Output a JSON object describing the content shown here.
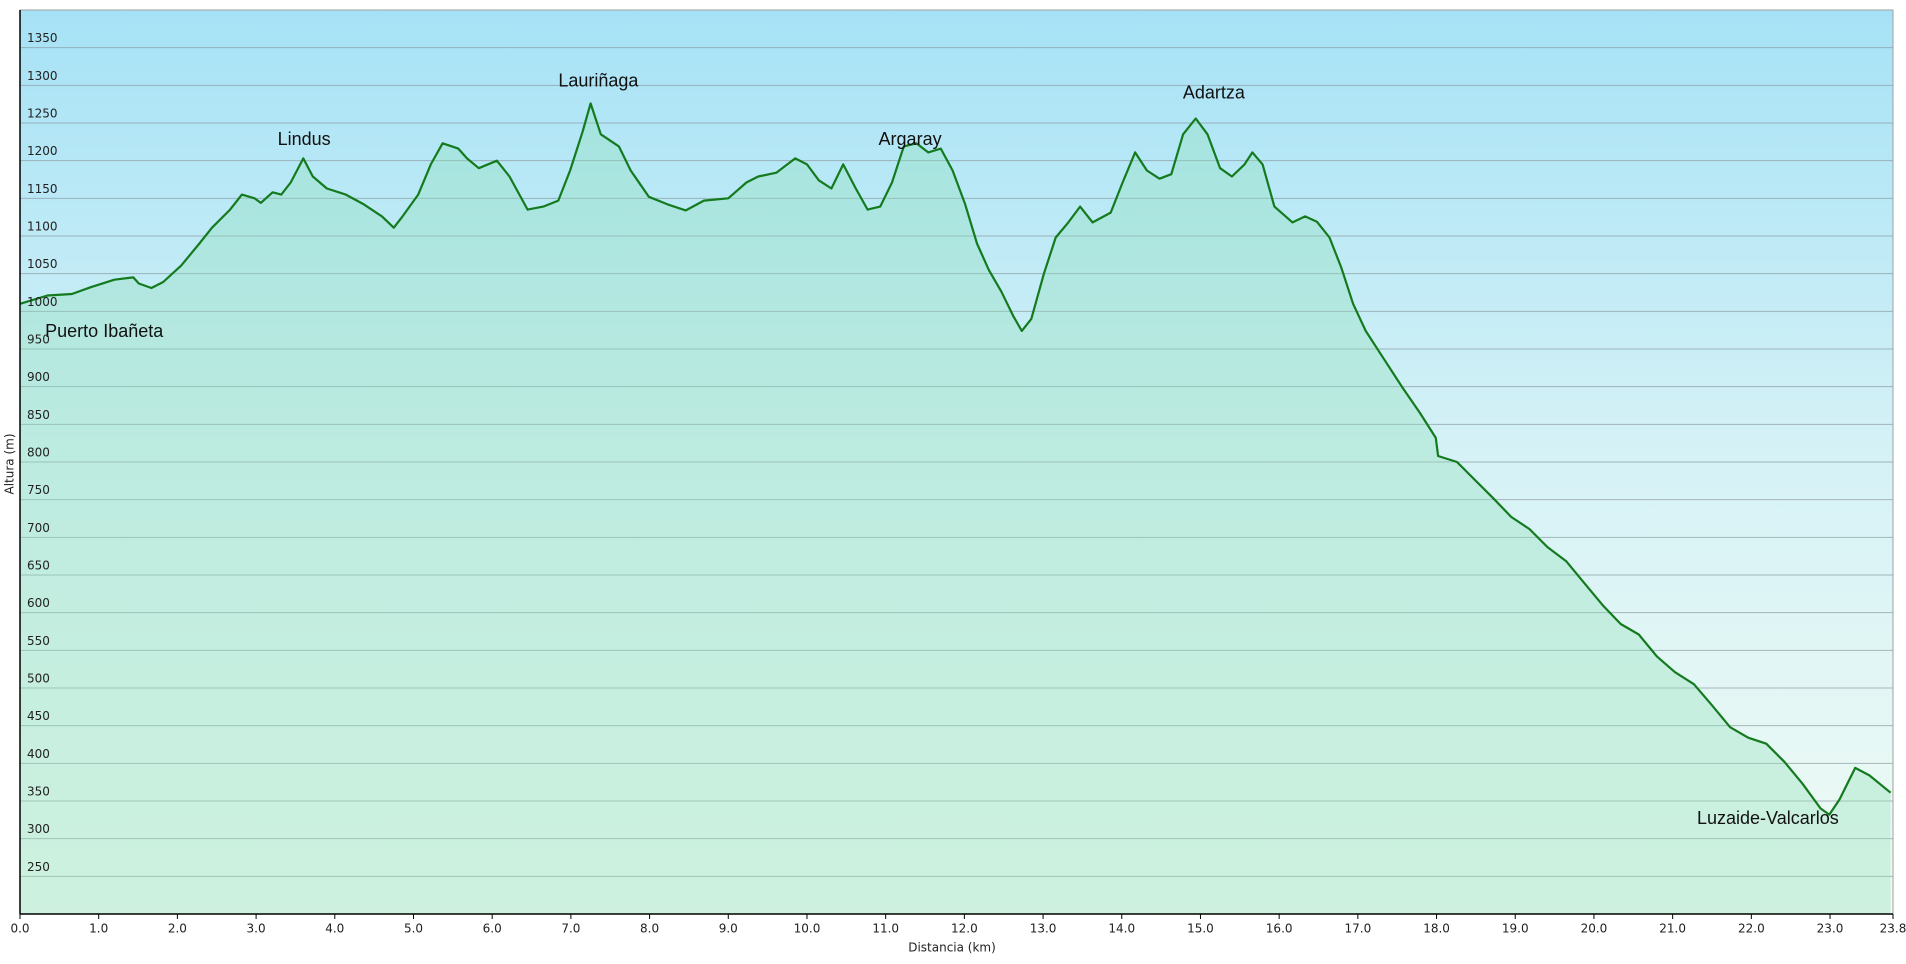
{
  "chart_data": {
    "type": "area",
    "x_label": "Distancia  (km)",
    "y_label": "Altura (m)",
    "color": "#147a1e",
    "fill": "#8fe0b8",
    "grid": true,
    "xlim": [
      0,
      23.8
    ],
    "ylim": [
      200,
      1400
    ],
    "yticks": [
      250,
      300,
      350,
      400,
      450,
      500,
      550,
      600,
      650,
      700,
      750,
      800,
      850,
      900,
      950,
      1000,
      1050,
      1100,
      1150,
      1200,
      1250,
      1300,
      1350
    ],
    "xticks": [
      {
        "value": 0,
        "label": "0.0"
      },
      {
        "value": 1,
        "label": "1.0"
      },
      {
        "value": 2,
        "label": "2.0"
      },
      {
        "value": 3,
        "label": "3.0"
      },
      {
        "value": 4,
        "label": "4.0"
      },
      {
        "value": 5,
        "label": "5.0"
      },
      {
        "value": 6,
        "label": "6.0"
      },
      {
        "value": 7,
        "label": "7.0"
      },
      {
        "value": 8,
        "label": "8.0"
      },
      {
        "value": 9,
        "label": "9.0"
      },
      {
        "value": 10,
        "label": "10.0"
      },
      {
        "value": 11,
        "label": "11.0"
      },
      {
        "value": 12,
        "label": "12.0"
      },
      {
        "value": 13,
        "label": "13.0"
      },
      {
        "value": 14,
        "label": "14.0"
      },
      {
        "value": 15,
        "label": "15.0"
      },
      {
        "value": 16,
        "label": "16.0"
      },
      {
        "value": 17,
        "label": "17.0"
      },
      {
        "value": 18,
        "label": "18.0"
      },
      {
        "value": 19,
        "label": "19.0"
      },
      {
        "value": 20,
        "label": "20.0"
      },
      {
        "value": 21,
        "label": "21.0"
      },
      {
        "value": 22,
        "label": "22.0"
      },
      {
        "value": 23,
        "label": "23.0"
      },
      23.8
    ],
    "x": [
      0,
      0.35,
      0.66,
      0.9,
      1.2,
      1.44,
      1.51,
      1.67,
      1.82,
      2.05,
      2.28,
      2.44,
      2.67,
      2.82,
      2.98,
      3.06,
      3.21,
      3.32,
      3.44,
      3.6,
      3.72,
      3.9,
      4.14,
      4.37,
      4.6,
      4.75,
      4.86,
      5.06,
      5.22,
      5.37,
      5.57,
      5.68,
      5.83,
      6.06,
      6.22,
      6.45,
      6.65,
      6.84,
      6.99,
      7.15,
      7.25,
      7.38,
      7.61,
      7.76,
      7.99,
      8.23,
      8.46,
      8.69,
      9.0,
      9.23,
      9.38,
      9.61,
      9.85,
      10.0,
      10.15,
      10.31,
      10.46,
      10.62,
      10.77,
      10.93,
      11.08,
      11.23,
      11.39,
      11.54,
      11.7,
      11.85,
      12.01,
      12.16,
      12.31,
      12.47,
      12.62,
      12.73,
      12.85,
      13.01,
      13.16,
      13.32,
      13.47,
      13.63,
      13.86,
      14.01,
      14.17,
      14.32,
      14.48,
      14.63,
      14.78,
      14.94,
      15.09,
      15.25,
      15.4,
      15.56,
      15.66,
      15.79,
      15.94,
      16.17,
      16.33,
      16.48,
      16.64,
      16.79,
      16.94,
      17.1,
      17.33,
      17.56,
      17.79,
      17.99,
      18.02,
      18.26,
      18.49,
      18.72,
      18.95,
      19.18,
      19.41,
      19.65,
      19.88,
      20.11,
      20.34,
      20.57,
      20.8,
      21.03,
      21.27,
      21.5,
      21.73,
      21.96,
      22.19,
      22.42,
      22.65,
      22.88,
      22.99,
      23.12,
      23.32,
      23.5,
      23.77
    ],
    "values": [
      1010,
      1021,
      1023,
      1032,
      1042,
      1045,
      1037,
      1031,
      1039,
      1061,
      1090,
      1111,
      1135,
      1155,
      1150,
      1144,
      1158,
      1155,
      1171,
      1203,
      1179,
      1163,
      1155,
      1142,
      1126,
      1111,
      1126,
      1155,
      1195,
      1223,
      1216,
      1203,
      1190,
      1200,
      1179,
      1135,
      1139,
      1147,
      1187,
      1239,
      1276,
      1235,
      1219,
      1187,
      1152,
      1142,
      1134,
      1147,
      1150,
      1171,
      1179,
      1184,
      1203,
      1195,
      1174,
      1163,
      1195,
      1163,
      1135,
      1139,
      1171,
      1219,
      1223,
      1211,
      1216,
      1187,
      1142,
      1090,
      1055,
      1026,
      994,
      974,
      990,
      1050,
      1098,
      1118,
      1139,
      1118,
      1131,
      1171,
      1211,
      1187,
      1176,
      1182,
      1235,
      1256,
      1235,
      1190,
      1179,
      1195,
      1211,
      1195,
      1139,
      1118,
      1126,
      1119,
      1098,
      1058,
      1010,
      974,
      937,
      900,
      865,
      832,
      808,
      800,
      776,
      752,
      727,
      711,
      687,
      668,
      639,
      610,
      585,
      571,
      542,
      521,
      505,
      477,
      448,
      434,
      426,
      402,
      373,
      340,
      332,
      352,
      394,
      384,
      361
    ],
    "annotations": [
      {
        "text": "Puerto Ibañeta",
        "x": 1.07,
        "y": 972
      },
      {
        "text": "Lindus",
        "x": 3.61,
        "y": 1227
      },
      {
        "text": "Lauriñaga",
        "x": 7.35,
        "y": 1305
      },
      {
        "text": "Argaray",
        "x": 11.31,
        "y": 1227
      },
      {
        "text": "Adartza",
        "x": 15.17,
        "y": 1289
      },
      {
        "text": "Luzaide-Valcarlos",
        "x": 22.21,
        "y": 326
      }
    ]
  }
}
